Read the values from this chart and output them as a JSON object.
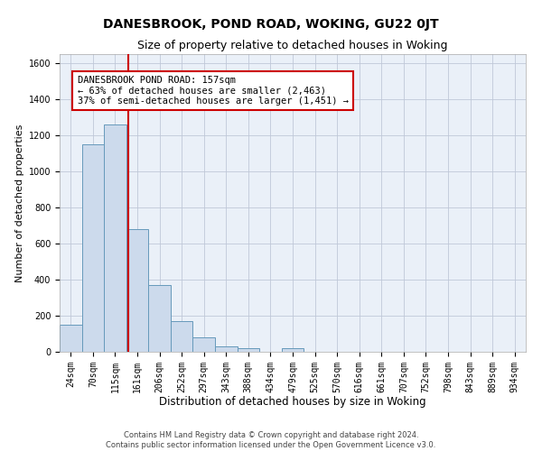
{
  "title": "DANESBROOK, POND ROAD, WOKING, GU22 0JT",
  "subtitle": "Size of property relative to detached houses in Woking",
  "xlabel": "Distribution of detached houses by size in Woking",
  "ylabel": "Number of detached properties",
  "footer_line1": "Contains HM Land Registry data © Crown copyright and database right 2024.",
  "footer_line2": "Contains public sector information licensed under the Open Government Licence v3.0.",
  "bar_labels": [
    "24sqm",
    "70sqm",
    "115sqm",
    "161sqm",
    "206sqm",
    "252sqm",
    "297sqm",
    "343sqm",
    "388sqm",
    "434sqm",
    "479sqm",
    "525sqm",
    "570sqm",
    "616sqm",
    "661sqm",
    "707sqm",
    "752sqm",
    "798sqm",
    "843sqm",
    "889sqm",
    "934sqm"
  ],
  "bar_values": [
    150,
    1150,
    1260,
    680,
    370,
    170,
    80,
    30,
    20,
    0,
    20,
    0,
    0,
    0,
    0,
    0,
    0,
    0,
    0,
    0,
    0
  ],
  "bar_color": "#ccdaec",
  "bar_edgecolor": "#6699bb",
  "ylim": [
    0,
    1650
  ],
  "yticks": [
    0,
    200,
    400,
    600,
    800,
    1000,
    1200,
    1400,
    1600
  ],
  "grid_color": "#c0c8d8",
  "annotation_line1": "DANESBROOK POND ROAD: 157sqm",
  "annotation_line2": "← 63% of detached houses are smaller (2,463)",
  "annotation_line3": "37% of semi-detached houses are larger (1,451) →",
  "vline_x_index": 2.6,
  "vline_color": "#cc0000",
  "box_facecolor": "#ffffff",
  "box_edgecolor": "#cc0000",
  "title_fontsize": 10,
  "subtitle_fontsize": 9,
  "xlabel_fontsize": 8.5,
  "ylabel_fontsize": 8,
  "tick_fontsize": 7,
  "annotation_fontsize": 7.5,
  "footer_fontsize": 6
}
